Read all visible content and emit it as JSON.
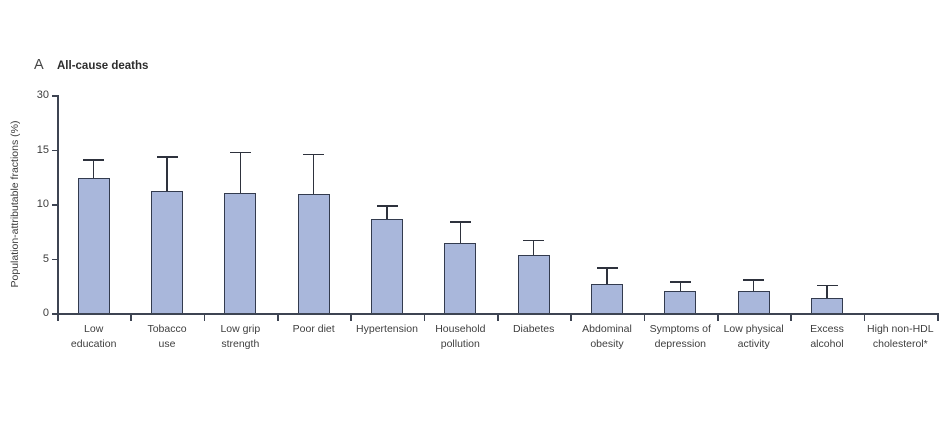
{
  "panel": {
    "letter": "A",
    "title": "All-cause deaths"
  },
  "chart_data": {
    "type": "bar",
    "title": "All-cause deaths",
    "xlabel": "",
    "ylabel": "Population-attributable fractions (%)",
    "yticks": [
      0,
      5,
      10,
      15,
      30
    ],
    "ytick_labels": [
      "0",
      "5",
      "10",
      "15",
      "30"
    ],
    "axis_note": "y axis tick spacing is equal between 0, 5, 10, 15 and 30 (top segment compressed)",
    "grid": "off",
    "legend": "none",
    "error_bars": "upper 95% CI whisker only",
    "categories": [
      "Low education",
      "Tobacco use",
      "Low grip strength",
      "Poor diet",
      "Hypertension",
      "Household pollution",
      "Diabetes",
      "Abdominal obesity",
      "Symptoms of depression",
      "Low physical activity",
      "Excess alcohol",
      "High non-HDL cholesterol*"
    ],
    "category_label_lines": [
      [
        "Low",
        "education"
      ],
      [
        "Tobacco",
        "use"
      ],
      [
        "Low grip",
        "strength"
      ],
      [
        "Poor diet"
      ],
      [
        "Hypertension"
      ],
      [
        "Household",
        "pollution"
      ],
      [
        "Diabetes"
      ],
      [
        "Abdominal",
        "obesity"
      ],
      [
        "Symptoms of",
        "depression"
      ],
      [
        "Low physical",
        "activity"
      ],
      [
        "Excess",
        "alcohol"
      ],
      [
        "High non-HDL",
        "cholesterol*"
      ]
    ],
    "values": [
      12.4,
      11.2,
      11.0,
      10.9,
      8.6,
      6.4,
      5.3,
      2.7,
      2.0,
      2.0,
      1.4,
      0
    ],
    "upper_ci": [
      14.1,
      14.4,
      14.8,
      14.6,
      9.9,
      8.4,
      6.7,
      4.2,
      2.9,
      3.1,
      2.6,
      null
    ],
    "colors": {
      "bar_fill": "#a9b7db",
      "bar_border": "#333b4e",
      "error_bar": "#2e323d",
      "axis": "#3d4452",
      "text": "#3e3e3e"
    }
  }
}
